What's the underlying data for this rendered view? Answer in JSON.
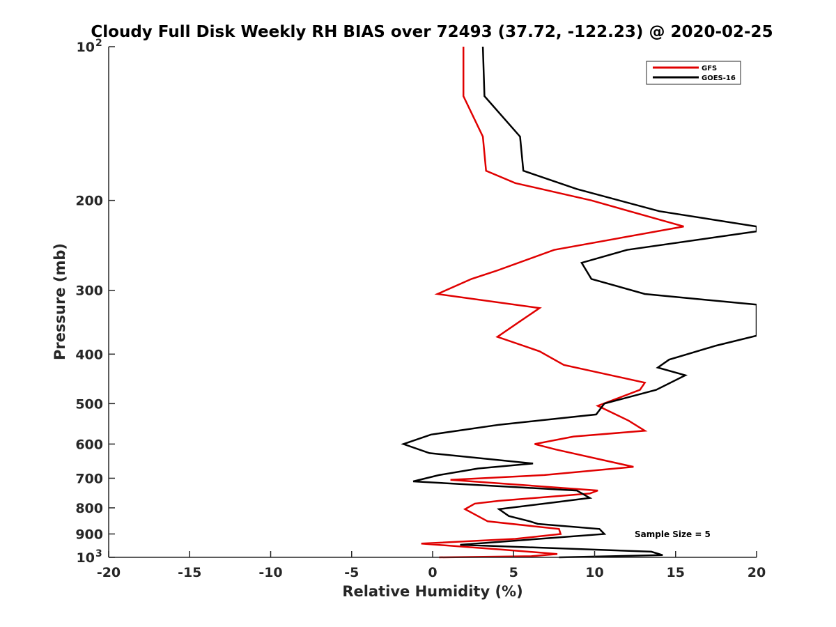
{
  "chart_data": {
    "type": "line",
    "title": "Cloudy Full Disk Weekly RH BIAS over 72493 (37.72, -122.23) @ 2020-02-25",
    "xlabel": "Relative Humidity (%)",
    "ylabel": "Pressure (mb)",
    "xlim": [
      -20,
      20
    ],
    "ylim": [
      100,
      1000
    ],
    "y_scale": "log",
    "y_reversed": true,
    "x_ticks": [
      "-20",
      "-15",
      "-10",
      "-5",
      "0",
      "5",
      "10",
      "15",
      "20"
    ],
    "y_ticks": [
      {
        "value": 100,
        "label": "10",
        "exp": "2"
      },
      {
        "value": 200,
        "label": "200"
      },
      {
        "value": 300,
        "label": "300"
      },
      {
        "value": 400,
        "label": "400"
      },
      {
        "value": 500,
        "label": "500"
      },
      {
        "value": 600,
        "label": "600"
      },
      {
        "value": 700,
        "label": "700"
      },
      {
        "value": 800,
        "label": "800"
      },
      {
        "value": 900,
        "label": "900"
      },
      {
        "value": 1000,
        "label": "10",
        "exp": "3"
      }
    ],
    "grid": false,
    "legend_position": "top-right",
    "annotation": "Sample Size = 5",
    "series": [
      {
        "name": "GFS",
        "color": "#e00000",
        "points": [
          [
            1.9,
            100
          ],
          [
            1.9,
            125
          ],
          [
            3.1,
            150
          ],
          [
            3.3,
            175
          ],
          [
            5.1,
            185
          ],
          [
            9.8,
            200
          ],
          [
            15.5,
            225
          ],
          [
            7.5,
            250
          ],
          [
            3.9,
            275
          ],
          [
            2.4,
            285
          ],
          [
            0.3,
            305
          ],
          [
            6.6,
            325
          ],
          [
            5.4,
            345
          ],
          [
            4.0,
            370
          ],
          [
            6.6,
            395
          ],
          [
            8.1,
            420
          ],
          [
            13.1,
            455
          ],
          [
            12.8,
            470
          ],
          [
            10.2,
            505
          ],
          [
            12.1,
            540
          ],
          [
            13.1,
            565
          ],
          [
            8.7,
            580
          ],
          [
            6.3,
            600
          ],
          [
            7.6,
            615
          ],
          [
            12.4,
            665
          ],
          [
            6.9,
            690
          ],
          [
            1.1,
            705
          ],
          [
            10.2,
            740
          ],
          [
            9.7,
            750
          ],
          [
            4.1,
            775
          ],
          [
            2.6,
            785
          ],
          [
            2.0,
            805
          ],
          [
            3.4,
            850
          ],
          [
            7.8,
            880
          ],
          [
            7.9,
            900
          ],
          [
            5.1,
            920
          ],
          [
            -0.7,
            940
          ],
          [
            4.2,
            965
          ],
          [
            7.7,
            985
          ],
          [
            6.1,
            995
          ],
          [
            0.4,
            1000
          ]
        ]
      },
      {
        "name": "GOES-16",
        "color": "#000000",
        "points": [
          [
            3.1,
            100
          ],
          [
            3.2,
            125
          ],
          [
            5.4,
            150
          ],
          [
            5.6,
            175
          ],
          [
            8.9,
            190
          ],
          [
            14.0,
            210
          ],
          [
            20.0,
            225
          ],
          [
            20.0,
            230
          ],
          [
            12.0,
            250
          ],
          [
            9.2,
            265
          ],
          [
            9.8,
            285
          ],
          [
            13.1,
            305
          ],
          [
            20.0,
            320
          ],
          [
            20.0,
            368
          ],
          [
            17.5,
            385
          ],
          [
            14.6,
            410
          ],
          [
            13.9,
            425
          ],
          [
            15.6,
            440
          ],
          [
            13.8,
            470
          ],
          [
            10.6,
            500
          ],
          [
            10.1,
            525
          ],
          [
            4.1,
            550
          ],
          [
            -0.1,
            575
          ],
          [
            -1.8,
            600
          ],
          [
            -0.2,
            625
          ],
          [
            6.2,
            655
          ],
          [
            2.8,
            670
          ],
          [
            0.4,
            690
          ],
          [
            -1.2,
            710
          ],
          [
            8.9,
            740
          ],
          [
            9.7,
            765
          ],
          [
            7.6,
            780
          ],
          [
            4.1,
            805
          ],
          [
            4.7,
            830
          ],
          [
            6.0,
            850
          ],
          [
            6.5,
            860
          ],
          [
            10.3,
            880
          ],
          [
            10.6,
            900
          ],
          [
            1.7,
            945
          ],
          [
            13.5,
            975
          ],
          [
            14.2,
            990
          ],
          [
            7.8,
            1000
          ]
        ]
      }
    ]
  }
}
